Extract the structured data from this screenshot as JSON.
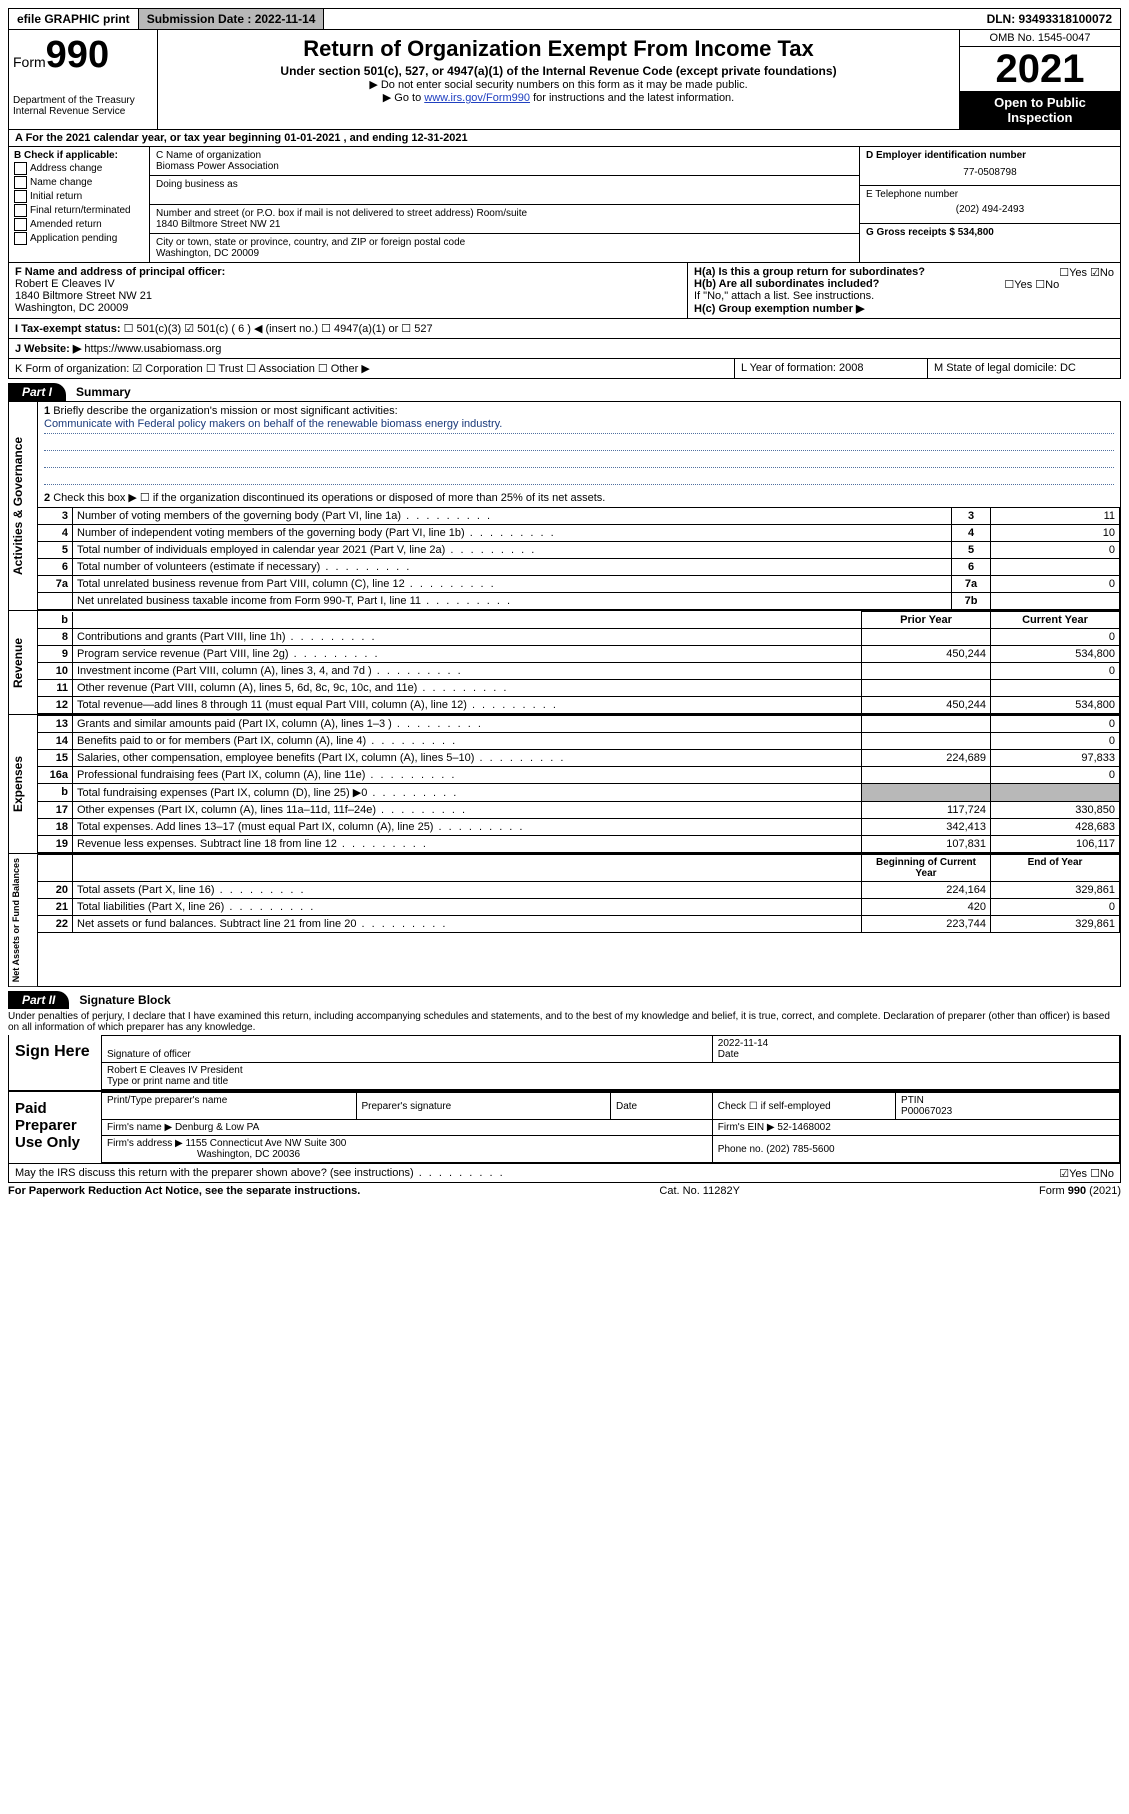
{
  "topbar": {
    "efile": "efile GRAPHIC print",
    "submission_label": "Submission Date : 2022-11-14",
    "dln": "DLN: 93493318100072"
  },
  "header": {
    "form_label": "Form",
    "form_number": "990",
    "dept": "Department of the Treasury",
    "irs": "Internal Revenue Service",
    "title": "Return of Organization Exempt From Income Tax",
    "sub1": "Under section 501(c), 527, or 4947(a)(1) of the Internal Revenue Code (except private foundations)",
    "sub2": "▶ Do not enter social security numbers on this form as it may be made public.",
    "sub3_pre": "▶ Go to ",
    "sub3_link": "www.irs.gov/Form990",
    "sub3_post": " for instructions and the latest information.",
    "omb": "OMB No. 1545-0047",
    "year": "2021",
    "open": "Open to Public Inspection"
  },
  "rowA": {
    "text": "A For the 2021 calendar year, or tax year beginning 01-01-2021   , and ending 12-31-2021"
  },
  "colB": {
    "title": "B Check if applicable:",
    "items": [
      "Address change",
      "Name change",
      "Initial return",
      "Final return/terminated",
      "Amended return",
      "Application pending"
    ]
  },
  "colC": {
    "name_label": "C Name of organization",
    "name": "Biomass Power Association",
    "dba_label": "Doing business as",
    "addr_label": "Number and street (or P.O. box if mail is not delivered to street address)      Room/suite",
    "addr": "1840 Biltmore Street NW 21",
    "city_label": "City or town, state or province, country, and ZIP or foreign postal code",
    "city": "Washington, DC  20009"
  },
  "colDE": {
    "d_label": "D Employer identification number",
    "d_val": "77-0508798",
    "e_label": "E Telephone number",
    "e_val": "(202) 494-2493",
    "g_label": "G Gross receipts $ 534,800"
  },
  "blockFH": {
    "f_label": "F Name and address of principal officer:",
    "f_name": "Robert E Cleaves IV",
    "f_addr1": "1840 Biltmore Street NW 21",
    "f_addr2": "Washington, DC  20009",
    "ha": "H(a)  Is this a group return for subordinates?",
    "ha_ans": "☐Yes ☑No",
    "hb": "H(b)  Are all subordinates included?",
    "hb_ans": "☐Yes ☐No",
    "hb_note": "If \"No,\" attach a list. See instructions.",
    "hc": "H(c)  Group exemption number ▶"
  },
  "rowI": {
    "label": "I   Tax-exempt status:",
    "opts": "☐ 501(c)(3)   ☑ 501(c) ( 6 ) ◀ (insert no.)     ☐ 4947(a)(1) or   ☐ 527"
  },
  "rowJ": {
    "label": "J   Website: ▶",
    "val": "https://www.usabiomass.org"
  },
  "rowK": {
    "k": "K Form of organization:  ☑ Corporation  ☐ Trust  ☐ Association  ☐ Other ▶",
    "l": "L Year of formation: 2008",
    "m": "M State of legal domicile: DC"
  },
  "part1": {
    "tag": "Part I",
    "title": "Summary",
    "q1": "Briefly describe the organization's mission or most significant activities:",
    "mission": "Communicate with Federal policy makers on behalf of the renewable biomass energy industry.",
    "q2": "Check this box ▶ ☐  if the organization discontinued its operations or disposed of more than 25% of its net assets.",
    "lines_gov": [
      {
        "n": "3",
        "d": "Number of voting members of the governing body (Part VI, line 1a)",
        "b": "3",
        "v": "11"
      },
      {
        "n": "4",
        "d": "Number of independent voting members of the governing body (Part VI, line 1b)",
        "b": "4",
        "v": "10"
      },
      {
        "n": "5",
        "d": "Total number of individuals employed in calendar year 2021 (Part V, line 2a)",
        "b": "5",
        "v": "0"
      },
      {
        "n": "6",
        "d": "Total number of volunteers (estimate if necessary)",
        "b": "6",
        "v": ""
      },
      {
        "n": "7a",
        "d": "Total unrelated business revenue from Part VIII, column (C), line 12",
        "b": "7a",
        "v": "0"
      },
      {
        "n": "",
        "d": "Net unrelated business taxable income from Form 990-T, Part I, line 11",
        "b": "7b",
        "v": ""
      }
    ],
    "col_hdr_prior": "Prior Year",
    "col_hdr_curr": "Current Year",
    "lines_rev": [
      {
        "n": "8",
        "d": "Contributions and grants (Part VIII, line 1h)",
        "p": "",
        "c": "0"
      },
      {
        "n": "9",
        "d": "Program service revenue (Part VIII, line 2g)",
        "p": "450,244",
        "c": "534,800"
      },
      {
        "n": "10",
        "d": "Investment income (Part VIII, column (A), lines 3, 4, and 7d )",
        "p": "",
        "c": "0"
      },
      {
        "n": "11",
        "d": "Other revenue (Part VIII, column (A), lines 5, 6d, 8c, 9c, 10c, and 11e)",
        "p": "",
        "c": ""
      },
      {
        "n": "12",
        "d": "Total revenue—add lines 8 through 11 (must equal Part VIII, column (A), line 12)",
        "p": "450,244",
        "c": "534,800"
      }
    ],
    "lines_exp": [
      {
        "n": "13",
        "d": "Grants and similar amounts paid (Part IX, column (A), lines 1–3 )",
        "p": "",
        "c": "0"
      },
      {
        "n": "14",
        "d": "Benefits paid to or for members (Part IX, column (A), line 4)",
        "p": "",
        "c": "0"
      },
      {
        "n": "15",
        "d": "Salaries, other compensation, employee benefits (Part IX, column (A), lines 5–10)",
        "p": "224,689",
        "c": "97,833"
      },
      {
        "n": "16a",
        "d": "Professional fundraising fees (Part IX, column (A), line 11e)",
        "p": "",
        "c": "0"
      },
      {
        "n": "b",
        "d": "Total fundraising expenses (Part IX, column (D), line 25) ▶0",
        "p": "shade",
        "c": "shade"
      },
      {
        "n": "17",
        "d": "Other expenses (Part IX, column (A), lines 11a–11d, 11f–24e)",
        "p": "117,724",
        "c": "330,850"
      },
      {
        "n": "18",
        "d": "Total expenses. Add lines 13–17 (must equal Part IX, column (A), line 25)",
        "p": "342,413",
        "c": "428,683"
      },
      {
        "n": "19",
        "d": "Revenue less expenses. Subtract line 18 from line 12",
        "p": "107,831",
        "c": "106,117"
      }
    ],
    "col_hdr_beg": "Beginning of Current Year",
    "col_hdr_end": "End of Year",
    "lines_net": [
      {
        "n": "20",
        "d": "Total assets (Part X, line 16)",
        "p": "224,164",
        "c": "329,861"
      },
      {
        "n": "21",
        "d": "Total liabilities (Part X, line 26)",
        "p": "420",
        "c": "0"
      },
      {
        "n": "22",
        "d": "Net assets or fund balances. Subtract line 21 from line 20",
        "p": "223,744",
        "c": "329,861"
      }
    ]
  },
  "part2": {
    "tag": "Part II",
    "title": "Signature Block",
    "perjury": "Under penalties of perjury, I declare that I have examined this return, including accompanying schedules and statements, and to the best of my knowledge and belief, it is true, correct, and complete. Declaration of preparer (other than officer) is based on all information of which preparer has any knowledge.",
    "sign_here": "Sign Here",
    "sig_officer": "Signature of officer",
    "sig_date": "2022-11-14",
    "date_label": "Date",
    "officer_name": "Robert E Cleaves IV  President",
    "officer_sub": "Type or print name and title",
    "paid": "Paid Preparer Use Only",
    "prep_name_label": "Print/Type preparer's name",
    "prep_sig_label": "Preparer's signature",
    "prep_date_label": "Date",
    "prep_check": "Check ☐ if self-employed",
    "ptin_label": "PTIN",
    "ptin": "P00067023",
    "firm_name_label": "Firm's name    ▶",
    "firm_name": "Denburg & Low PA",
    "firm_ein_label": "Firm's EIN ▶",
    "firm_ein": "52-1468002",
    "firm_addr_label": "Firm's address ▶",
    "firm_addr1": "1155 Connecticut Ave NW Suite 300",
    "firm_addr2": "Washington, DC  20036",
    "phone_label": "Phone no.",
    "phone": "(202) 785-5600",
    "may_irs": "May the IRS discuss this return with the preparer shown above? (see instructions)",
    "may_ans": "☑Yes  ☐No"
  },
  "footer": {
    "left": "For Paperwork Reduction Act Notice, see the separate instructions.",
    "mid": "Cat. No. 11282Y",
    "right": "Form 990 (2021)"
  }
}
